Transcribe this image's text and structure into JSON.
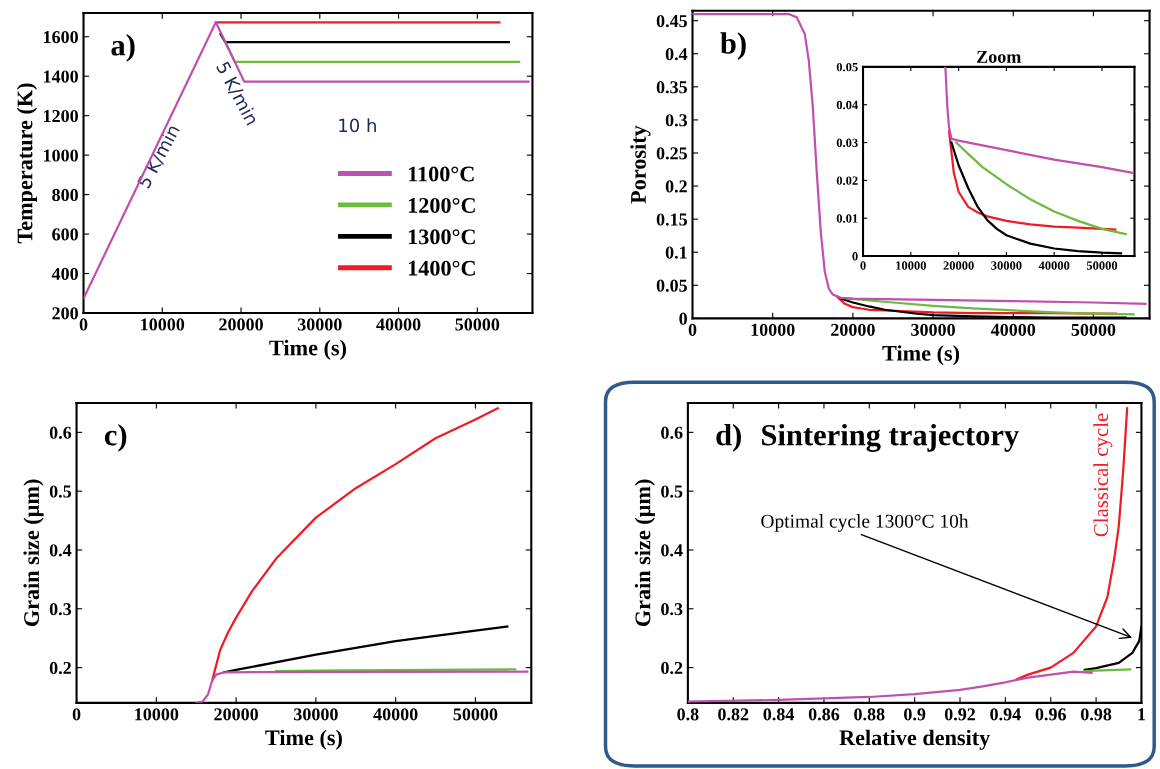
{
  "chart_data": [
    {
      "type": "line",
      "xlabel": "Time (s)",
      "ylabel": "Temperature (K)",
      "xlim": [
        0,
        57000
      ],
      "ylim": [
        200,
        1720
      ],
      "xticks": [
        0,
        10000,
        20000,
        30000,
        40000,
        50000
      ],
      "yticks": [
        200,
        400,
        600,
        800,
        1000,
        1200,
        1400,
        1600
      ],
      "legend": "center right",
      "grid": false,
      "annotations": [
        "a)",
        "5 K/min",
        "5 K/min",
        "10 h"
      ],
      "series": [
        {
          "name": "1100°C",
          "color": "#c050b0",
          "x": [
            0,
            16800,
            20400,
            56500
          ],
          "values": [
            273,
            1673,
            1373,
            1373
          ]
        },
        {
          "name": "1200°C",
          "color": "#6cbb3c",
          "x": [
            18000,
            19200,
            55300
          ],
          "values": [
            1573,
            1473,
            1473
          ]
        },
        {
          "name": "1300°C",
          "color": "#000000",
          "x": [
            17400,
            18000,
            54000
          ],
          "values": [
            1613,
            1573,
            1573
          ]
        },
        {
          "name": "1400°C",
          "color": "#ee1c25",
          "x": [
            16800,
            52800
          ],
          "values": [
            1673,
            1673
          ]
        }
      ]
    },
    {
      "type": "line",
      "xlabel": "Time (s)",
      "ylabel": "Porosity",
      "xlim": [
        0,
        57000
      ],
      "ylim": [
        0,
        0.465
      ],
      "xticks": [
        0,
        10000,
        20000,
        30000,
        40000,
        50000
      ],
      "yticks": [
        0,
        0.05,
        0.1,
        0.15,
        0.2,
        0.25,
        0.3,
        0.35,
        0.4,
        0.45
      ],
      "grid": false,
      "annotations": [
        "b)"
      ],
      "series": [
        {
          "color": "#c050b0",
          "x": [
            0,
            12000,
            13000,
            14000,
            14500,
            15000,
            15500,
            16000,
            16500,
            17000,
            17500,
            18500,
            20000,
            30000,
            40000,
            50000,
            56500
          ],
          "values": [
            0.46,
            0.46,
            0.455,
            0.43,
            0.39,
            0.32,
            0.22,
            0.13,
            0.07,
            0.045,
            0.036,
            0.031,
            0.03,
            0.028,
            0.026,
            0.024,
            0.022
          ]
        },
        {
          "color": "#6cbb3c",
          "x": [
            19500,
            22000,
            25000,
            30000,
            35000,
            40000,
            45000,
            50000,
            55000
          ],
          "values": [
            0.03,
            0.027,
            0.024,
            0.019,
            0.015,
            0.012,
            0.009,
            0.007,
            0.006
          ]
        },
        {
          "color": "#000000",
          "x": [
            18500,
            20000,
            22000,
            24000,
            26000,
            28000,
            30000,
            35000,
            40000,
            45000,
            50000,
            54000
          ],
          "values": [
            0.03,
            0.024,
            0.018,
            0.013,
            0.01,
            0.007,
            0.005,
            0.003,
            0.002,
            0.001,
            0.001,
            0.001
          ]
        },
        {
          "color": "#ee1c25",
          "x": [
            18000,
            19000,
            20000,
            22000,
            24000,
            26000,
            30000,
            35000,
            40000,
            45000,
            50000,
            52800
          ],
          "values": [
            0.033,
            0.022,
            0.017,
            0.013,
            0.012,
            0.011,
            0.009,
            0.008,
            0.008,
            0.008,
            0.007,
            0.007
          ]
        }
      ]
    },
    {
      "type": "line",
      "title": "Zoom",
      "xlim": [
        0,
        56800
      ],
      "ylim": [
        0,
        0.05
      ],
      "xticks": [
        0,
        10000,
        20000,
        30000,
        40000,
        50000
      ],
      "yticks": [
        0,
        0.01,
        0.02,
        0.03,
        0.04,
        0.05
      ],
      "grid": false,
      "series": [
        {
          "color": "#c050b0",
          "x": [
            17240,
            17600,
            18000,
            18500,
            20000,
            30000,
            40000,
            50000,
            56500
          ],
          "values": [
            0.05,
            0.04,
            0.034,
            0.031,
            0.0305,
            0.028,
            0.0255,
            0.0235,
            0.022
          ]
        },
        {
          "color": "#6cbb3c",
          "x": [
            19500,
            22000,
            25000,
            30000,
            35000,
            40000,
            45000,
            50000,
            55000
          ],
          "values": [
            0.03,
            0.027,
            0.0235,
            0.019,
            0.015,
            0.0118,
            0.0093,
            0.0072,
            0.0058
          ]
        },
        {
          "color": "#000000",
          "x": [
            18500,
            20000,
            22000,
            24000,
            26000,
            28000,
            30000,
            35000,
            40000,
            45000,
            50000,
            54000
          ],
          "values": [
            0.03,
            0.024,
            0.018,
            0.013,
            0.0095,
            0.0072,
            0.0055,
            0.0033,
            0.002,
            0.0013,
            0.0009,
            0.0007
          ]
        },
        {
          "color": "#ee1c25",
          "x": [
            18000,
            19000,
            20000,
            22000,
            24000,
            26000,
            30000,
            35000,
            40000,
            45000,
            50000,
            52800
          ],
          "values": [
            0.033,
            0.022,
            0.017,
            0.013,
            0.0115,
            0.0105,
            0.0093,
            0.0084,
            0.0078,
            0.0075,
            0.0072,
            0.007
          ]
        }
      ]
    },
    {
      "type": "line",
      "xlabel": "Time (s)",
      "ylabel": "Grain size (µm)",
      "xlim": [
        0,
        57000
      ],
      "ylim": [
        0.14,
        0.65
      ],
      "xticks": [
        0,
        10000,
        20000,
        30000,
        40000,
        50000
      ],
      "yticks": [
        0.2,
        0.3,
        0.4,
        0.5,
        0.6
      ],
      "grid": false,
      "annotations": [
        "c)"
      ],
      "series": [
        {
          "color": "#c050b0",
          "x": [
            15000,
            15800,
            16500,
            17000,
            17500,
            18500,
            56500
          ],
          "values": [
            0.14,
            0.142,
            0.155,
            0.178,
            0.188,
            0.192,
            0.193
          ]
        },
        {
          "color": "#6cbb3c",
          "x": [
            25000,
            30000,
            55000
          ],
          "values": [
            0.194,
            0.195,
            0.197
          ]
        },
        {
          "color": "#000000",
          "x": [
            18500,
            20000,
            30000,
            40000,
            50000,
            54000
          ],
          "values": [
            0.192,
            0.196,
            0.222,
            0.245,
            0.263,
            0.27
          ]
        },
        {
          "color": "#ee1c25",
          "x": [
            17000,
            18000,
            19000,
            20000,
            22000,
            25000,
            30000,
            35000,
            40000,
            45000,
            50000,
            52800
          ],
          "values": [
            0.178,
            0.23,
            0.26,
            0.285,
            0.33,
            0.385,
            0.455,
            0.505,
            0.546,
            0.59,
            0.622,
            0.641
          ]
        }
      ]
    },
    {
      "type": "line",
      "xlabel": "Relative density",
      "ylabel": "Grain size (µm)",
      "xlim": [
        0.8,
        1
      ],
      "ylim": [
        0.14,
        0.65
      ],
      "xticks": [
        0.8,
        0.82,
        0.84,
        0.86,
        0.88,
        0.9,
        0.92,
        0.94,
        0.96,
        0.98,
        1
      ],
      "yticks": [
        0.2,
        0.3,
        0.4,
        0.5,
        0.6
      ],
      "grid": false,
      "annotations": [
        "d)",
        "Sintering trajectory",
        {
          "text": "Optimal cycle 1300°C 10h",
          "x": 0.997,
          "y": 0.249
        },
        "Classical cycle"
      ],
      "series": [
        {
          "color": "#c050b0",
          "x": [
            0.8,
            0.84,
            0.88,
            0.9,
            0.92,
            0.93,
            0.94,
            0.95,
            0.96,
            0.97,
            0.978
          ],
          "values": [
            0.142,
            0.145,
            0.15,
            0.155,
            0.162,
            0.168,
            0.175,
            0.183,
            0.188,
            0.193,
            0.191
          ]
        },
        {
          "color": "#6cbb3c",
          "x": [
            0.975,
            0.98,
            0.995
          ],
          "values": [
            0.194,
            0.195,
            0.197
          ]
        },
        {
          "color": "#000000",
          "x": [
            0.975,
            0.98,
            0.99,
            0.996,
            0.999,
            1
          ],
          "values": [
            0.196,
            0.199,
            0.208,
            0.225,
            0.245,
            0.27
          ]
        },
        {
          "color": "#ee1c25",
          "x": [
            0.945,
            0.95,
            0.96,
            0.97,
            0.98,
            0.985,
            0.988,
            0.99,
            0.992,
            0.9937
          ],
          "values": [
            0.18,
            0.188,
            0.2,
            0.225,
            0.27,
            0.32,
            0.385,
            0.44,
            0.537,
            0.641
          ]
        }
      ]
    }
  ]
}
